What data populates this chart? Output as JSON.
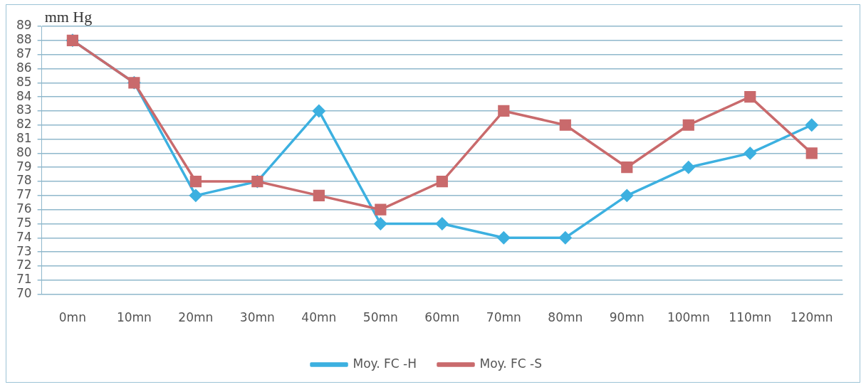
{
  "chart_data": {
    "type": "line",
    "ylabel": "mm Hg",
    "categories": [
      "0mn",
      "10mn",
      "20mn",
      "30mn",
      "40mn",
      "50mn",
      "60mn",
      "70mn",
      "80mn",
      "90mn",
      "100mn",
      "110mn",
      "120mn"
    ],
    "series": [
      {
        "name": "Moy. FC -H",
        "color": "#3cb0e0",
        "marker": "diamond",
        "values": [
          88,
          85,
          77,
          78,
          83,
          75,
          75,
          74,
          74,
          77,
          79,
          80,
          82
        ]
      },
      {
        "name": "Moy. FC -S",
        "color": "#c96a6c",
        "marker": "square",
        "values": [
          88,
          85,
          78,
          78,
          77,
          76,
          78,
          83,
          82,
          79,
          82,
          84,
          80
        ]
      }
    ],
    "ylim": [
      70,
      89
    ],
    "yticks": [
      70,
      71,
      72,
      73,
      74,
      75,
      76,
      77,
      78,
      79,
      80,
      81,
      82,
      83,
      84,
      85,
      86,
      87,
      88,
      89
    ],
    "grid": "y",
    "legend": "bottom",
    "line_style": "solid"
  }
}
